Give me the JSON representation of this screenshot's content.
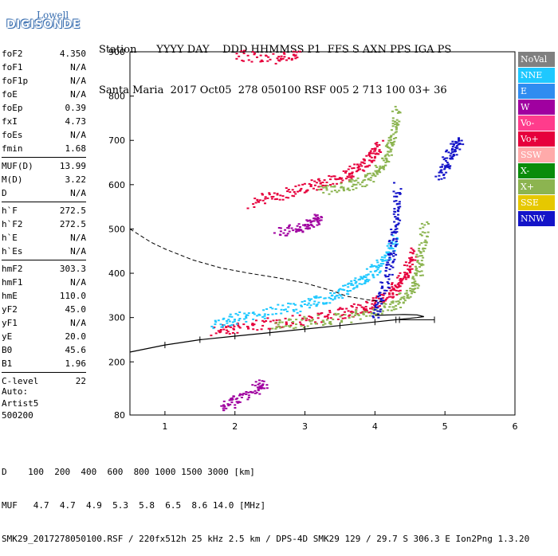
{
  "logo": {
    "line1": "Lowell",
    "line2": "DIGISONDE"
  },
  "header": {
    "labels": "Station      YYYY DAY    DDD HHMMSS P1  FFS S AXN PPS IGA PS",
    "values": "Santa Maria  2017 Oct05  278 050100 RSF 005 2 713 100 03+ 36"
  },
  "params": [
    {
      "k": "foF2",
      "v": "4.350"
    },
    {
      "k": "foF1",
      "v": "N/A"
    },
    {
      "k": "foF1p",
      "v": "N/A"
    },
    {
      "k": "foE",
      "v": "N/A"
    },
    {
      "k": "foEp",
      "v": "0.39"
    },
    {
      "k": "fxI",
      "v": "4.73"
    },
    {
      "k": "foEs",
      "v": "N/A"
    },
    {
      "k": "fmin",
      "v": "1.68"
    },
    {
      "sep": true
    },
    {
      "k": "MUF(D)",
      "v": "13.99"
    },
    {
      "k": "M(D)",
      "v": "3.22"
    },
    {
      "k": "D",
      "v": "N/A"
    },
    {
      "sep": true
    },
    {
      "k": "h`F",
      "v": "272.5"
    },
    {
      "k": "h`F2",
      "v": "272.5"
    },
    {
      "k": "h`E",
      "v": "N/A"
    },
    {
      "k": "h`Es",
      "v": "N/A"
    },
    {
      "sep": true
    },
    {
      "k": "hmF2",
      "v": "303.3"
    },
    {
      "k": "hmF1",
      "v": "N/A"
    },
    {
      "k": "hmE",
      "v": "110.0"
    },
    {
      "k": "yF2",
      "v": "45.0"
    },
    {
      "k": "yF1",
      "v": "N/A"
    },
    {
      "k": "yE",
      "v": "20.0"
    },
    {
      "k": "B0",
      "v": "45.6"
    },
    {
      "k": "B1",
      "v": "1.96"
    },
    {
      "sep": true
    },
    {
      "k": "C-level",
      "v": "22"
    }
  ],
  "auto": {
    "line1": "Auto:",
    "line2": "Artist5",
    "line3": "500200"
  },
  "footer": {
    "line1": "D    100  200  400  600  800 1000 1500 3000 [km]",
    "line2": "MUF   4.7  4.7  4.9  5.3  5.8  6.5  8.6 14.0 [MHz]",
    "line3": "SMK29_2017278050100.RSF / 220fx512h 25 kHz 2.5 km / DPS-4D SMK29 129 / 29.7 S 306.3 E Ion2Png 1.3.20"
  },
  "legend": [
    {
      "label": "NoVal",
      "color": "#808080"
    },
    {
      "label": "NNE",
      "color": "#1ec8ff"
    },
    {
      "label": "E",
      "color": "#2f8cf0"
    },
    {
      "label": "W",
      "color": "#a000a0"
    },
    {
      "label": "Vo-",
      "color": "#ff3c8c"
    },
    {
      "label": "Vo+",
      "color": "#e6003c"
    },
    {
      "label": "SSW",
      "color": "#ffaaaa"
    },
    {
      "label": "X-",
      "color": "#0a8c0a"
    },
    {
      "label": "X+",
      "color": "#8cb450"
    },
    {
      "label": "SSE",
      "color": "#e6c800"
    },
    {
      "label": "NNW",
      "color": "#1414c8"
    }
  ],
  "chart_data": {
    "type": "scatter",
    "title": "",
    "xlabel": "",
    "ylabel": "",
    "xlim": [
      0.5,
      6.0
    ],
    "ylim": [
      80,
      900
    ],
    "xticks": [
      1,
      2,
      3,
      4,
      5,
      6
    ],
    "yticks": [
      80,
      200,
      300,
      400,
      500,
      600,
      700,
      800,
      900
    ],
    "series": [
      {
        "kind": "trace",
        "color": "#e6003c",
        "points": [
          [
            1.7,
            272
          ],
          [
            2.0,
            278
          ],
          [
            2.5,
            288
          ],
          [
            3.0,
            298
          ],
          [
            3.5,
            310
          ],
          [
            3.8,
            322
          ],
          [
            4.0,
            335
          ],
          [
            4.2,
            355
          ],
          [
            4.35,
            380
          ],
          [
            4.45,
            410
          ],
          [
            4.55,
            450
          ]
        ]
      },
      {
        "kind": "trace",
        "color": "#1ec8ff",
        "points": [
          [
            1.7,
            285
          ],
          [
            2.0,
            300
          ],
          [
            2.5,
            315
          ],
          [
            3.0,
            330
          ],
          [
            3.3,
            345
          ],
          [
            3.6,
            365
          ],
          [
            3.8,
            385
          ],
          [
            4.0,
            410
          ],
          [
            4.15,
            440
          ],
          [
            4.3,
            480
          ]
        ]
      },
      {
        "kind": "trace",
        "color": "#8cb450",
        "points": [
          [
            2.5,
            285
          ],
          [
            3.0,
            292
          ],
          [
            3.5,
            300
          ],
          [
            4.0,
            315
          ],
          [
            4.3,
            335
          ],
          [
            4.5,
            360
          ],
          [
            4.6,
            400
          ],
          [
            4.65,
            450
          ],
          [
            4.7,
            520
          ]
        ]
      },
      {
        "kind": "trace",
        "color": "#1414c8",
        "points": [
          [
            4.0,
            300
          ],
          [
            4.1,
            360
          ],
          [
            4.2,
            420
          ],
          [
            4.25,
            480
          ],
          [
            4.3,
            540
          ],
          [
            4.3,
            600
          ]
        ]
      },
      {
        "kind": "trace",
        "color": "#e6003c",
        "points": [
          [
            2.2,
            560
          ],
          [
            2.6,
            578
          ],
          [
            3.0,
            595
          ],
          [
            3.3,
            608
          ],
          [
            3.6,
            625
          ],
          [
            3.8,
            645
          ],
          [
            3.95,
            665
          ],
          [
            4.05,
            690
          ]
        ]
      },
      {
        "kind": "trace",
        "color": "#8cb450",
        "points": [
          [
            3.2,
            585
          ],
          [
            3.6,
            600
          ],
          [
            3.9,
            615
          ],
          [
            4.1,
            640
          ],
          [
            4.2,
            680
          ],
          [
            4.25,
            720
          ],
          [
            4.3,
            780
          ]
        ]
      },
      {
        "kind": "trace",
        "color": "#a000a0",
        "points": [
          [
            2.6,
            495
          ],
          [
            2.9,
            505
          ],
          [
            3.1,
            515
          ],
          [
            3.2,
            525
          ]
        ]
      },
      {
        "kind": "trace",
        "color": "#e6003c",
        "points": [
          [
            2.0,
            895
          ],
          [
            2.6,
            885
          ],
          [
            2.9,
            895
          ]
        ]
      },
      {
        "kind": "trace",
        "color": "#1414c8",
        "points": [
          [
            4.9,
            620
          ],
          [
            5.0,
            650
          ],
          [
            5.1,
            680
          ],
          [
            5.2,
            700
          ]
        ]
      },
      {
        "kind": "trace",
        "color": "#a000a0",
        "points": [
          [
            1.8,
            100
          ],
          [
            2.0,
            115
          ],
          [
            2.3,
            140
          ],
          [
            2.4,
            155
          ]
        ]
      }
    ],
    "profile_lower": [
      [
        0.5,
        222
      ],
      [
        1.0,
        238
      ],
      [
        1.5,
        250
      ],
      [
        2.0,
        258
      ],
      [
        2.5,
        266
      ],
      [
        3.0,
        274
      ],
      [
        3.5,
        282
      ],
      [
        4.0,
        290
      ],
      [
        4.3,
        295
      ],
      [
        4.6,
        300
      ],
      [
        4.7,
        302
      ],
      [
        4.6,
        306
      ],
      [
        4.4,
        307
      ],
      [
        4.0,
        305
      ]
    ],
    "profile_upper": [
      [
        0.5,
        500
      ],
      [
        0.8,
        470
      ],
      [
        1.0,
        455
      ],
      [
        1.4,
        430
      ],
      [
        1.8,
        412
      ],
      [
        2.2,
        400
      ],
      [
        2.6,
        390
      ],
      [
        3.0,
        378
      ],
      [
        3.4,
        360
      ],
      [
        3.6,
        348
      ],
      [
        3.9,
        340
      ],
      [
        4.1,
        336
      ]
    ],
    "bar": {
      "x1": 4.35,
      "x2": 4.85,
      "y": 295
    }
  }
}
